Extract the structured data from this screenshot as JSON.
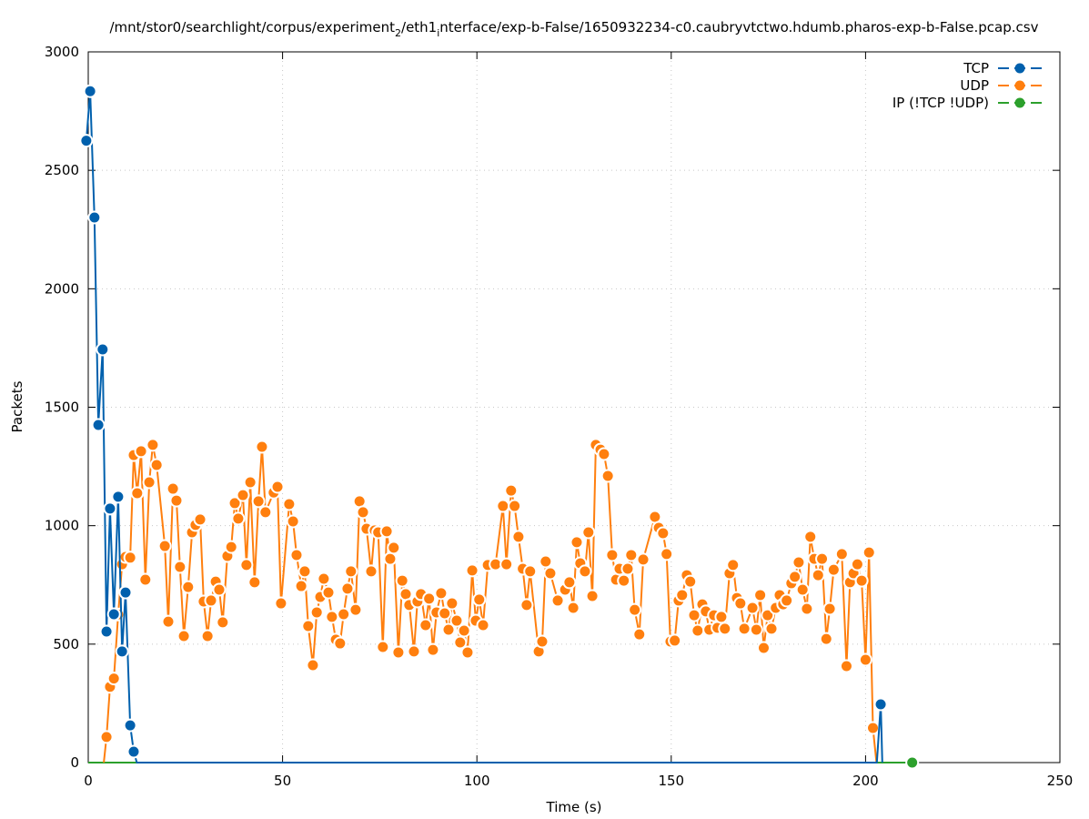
{
  "chart_data": {
    "type": "line",
    "title": {
      "pre": "/mnt/stor0/searchlight/corpus/experiment",
      "sub1": "2",
      "mid": "/eth1",
      "sub2": "i",
      "post": "nterface/exp-b-False/1650932234-c0.caubryvtctwo.hdumb.pharos-exp-b-False.pcap.csv"
    },
    "xlabel": "Time (s)",
    "ylabel": "Packets",
    "xlim": [
      0,
      250
    ],
    "ylim": [
      0,
      3000
    ],
    "xticks": [
      0,
      50,
      100,
      150,
      200,
      250
    ],
    "yticks": [
      0,
      500,
      1000,
      1500,
      2000,
      2500,
      3000
    ],
    "grid": true,
    "legend_position": "top-right",
    "series": [
      {
        "name": "TCP",
        "color": "#0060ad",
        "points": [
          [
            -0.5,
            2625
          ],
          [
            0.5,
            2834
          ],
          [
            1.6,
            2301
          ],
          [
            2.6,
            1425
          ],
          [
            3.7,
            1744
          ],
          [
            4.7,
            553
          ],
          [
            5.6,
            1072
          ],
          [
            6.6,
            626
          ],
          [
            7.7,
            1122
          ],
          [
            8.7,
            469
          ],
          [
            9.6,
            718
          ],
          [
            10.8,
            157
          ],
          [
            11.7,
            46
          ],
          [
            12.5,
            0
          ],
          [
            202.9,
            0
          ],
          [
            203.9,
            246
          ],
          [
            204.3,
            0
          ]
        ],
        "marker_count": 13,
        "extra_markers": [
          [
            203.9,
            246
          ]
        ]
      },
      {
        "name": "UDP",
        "color": "#ff7f0e",
        "points": [
          [
            4.0,
            0
          ],
          [
            4.7,
            108
          ],
          [
            5.6,
            320
          ],
          [
            6.6,
            355
          ],
          [
            7.7,
            625
          ],
          [
            8.7,
            837
          ],
          [
            9.6,
            868
          ],
          [
            10.8,
            865
          ],
          [
            11.7,
            1298
          ],
          [
            12.6,
            1137
          ],
          [
            13.6,
            1314
          ],
          [
            14.7,
            772
          ],
          [
            15.7,
            1183
          ],
          [
            16.6,
            1341
          ],
          [
            17.6,
            1256
          ],
          [
            19.7,
            914
          ],
          [
            20.6,
            595
          ],
          [
            21.8,
            1156
          ],
          [
            22.7,
            1106
          ],
          [
            23.6,
            826
          ],
          [
            24.6,
            534
          ],
          [
            25.7,
            741
          ],
          [
            26.7,
            972
          ],
          [
            27.6,
            1003
          ],
          [
            28.8,
            1026
          ],
          [
            29.7,
            680
          ],
          [
            30.7,
            534
          ],
          [
            31.6,
            684
          ],
          [
            32.8,
            764
          ],
          [
            33.7,
            730
          ],
          [
            34.6,
            592
          ],
          [
            35.8,
            872
          ],
          [
            36.8,
            910
          ],
          [
            37.7,
            1095
          ],
          [
            38.6,
            1030
          ],
          [
            39.8,
            1129
          ],
          [
            40.7,
            834
          ],
          [
            41.7,
            1183
          ],
          [
            42.8,
            761
          ],
          [
            43.8,
            1103
          ],
          [
            44.7,
            1333
          ],
          [
            45.6,
            1057
          ],
          [
            47.7,
            1140
          ],
          [
            48.7,
            1164
          ],
          [
            49.6,
            672
          ],
          [
            51.7,
            1091
          ],
          [
            52.7,
            1018
          ],
          [
            53.6,
            876
          ],
          [
            54.8,
            745
          ],
          [
            55.7,
            807
          ],
          [
            56.6,
            576
          ],
          [
            57.8,
            411
          ],
          [
            58.8,
            634
          ],
          [
            59.7,
            699
          ],
          [
            60.6,
            776
          ],
          [
            61.8,
            718
          ],
          [
            62.7,
            615
          ],
          [
            63.7,
            519
          ],
          [
            64.8,
            503
          ],
          [
            65.7,
            626
          ],
          [
            66.7,
            734
          ],
          [
            67.6,
            807
          ],
          [
            68.8,
            645
          ],
          [
            69.8,
            1103
          ],
          [
            70.7,
            1057
          ],
          [
            71.6,
            987
          ],
          [
            72.8,
            807
          ],
          [
            73.7,
            980
          ],
          [
            74.6,
            972
          ],
          [
            75.8,
            488
          ],
          [
            76.8,
            976
          ],
          [
            77.7,
            860
          ],
          [
            78.6,
            907
          ],
          [
            79.8,
            465
          ],
          [
            80.8,
            768
          ],
          [
            81.7,
            711
          ],
          [
            82.6,
            665
          ],
          [
            83.8,
            469
          ],
          [
            84.7,
            680
          ],
          [
            85.6,
            711
          ],
          [
            86.8,
            580
          ],
          [
            87.7,
            692
          ],
          [
            88.7,
            476
          ],
          [
            89.6,
            634
          ],
          [
            90.8,
            715
          ],
          [
            91.7,
            630
          ],
          [
            92.7,
            561
          ],
          [
            93.6,
            672
          ],
          [
            94.8,
            599
          ],
          [
            95.7,
            507
          ],
          [
            96.7,
            557
          ],
          [
            97.6,
            465
          ],
          [
            98.8,
            811
          ],
          [
            99.7,
            599
          ],
          [
            100.6,
            688
          ],
          [
            101.6,
            580
          ],
          [
            102.8,
            834
          ],
          [
            104.8,
            837
          ],
          [
            106.7,
            1083
          ],
          [
            107.6,
            837
          ],
          [
            108.8,
            1148
          ],
          [
            109.7,
            1083
          ],
          [
            110.7,
            953
          ],
          [
            111.8,
            818
          ],
          [
            112.8,
            665
          ],
          [
            113.7,
            807
          ],
          [
            115.9,
            469
          ],
          [
            116.8,
            511
          ],
          [
            117.7,
            849
          ],
          [
            118.9,
            799
          ],
          [
            120.8,
            684
          ],
          [
            122.7,
            730
          ],
          [
            123.8,
            761
          ],
          [
            124.8,
            653
          ],
          [
            125.7,
            930
          ],
          [
            126.6,
            841
          ],
          [
            127.8,
            807
          ],
          [
            128.7,
            972
          ],
          [
            129.7,
            703
          ],
          [
            130.6,
            1341
          ],
          [
            131.8,
            1321
          ],
          [
            132.7,
            1302
          ],
          [
            133.7,
            1210
          ],
          [
            134.8,
            876
          ],
          [
            135.8,
            772
          ],
          [
            136.7,
            818
          ],
          [
            137.8,
            768
          ],
          [
            138.8,
            818
          ],
          [
            139.7,
            876
          ],
          [
            140.6,
            645
          ],
          [
            141.8,
            541
          ],
          [
            142.8,
            857
          ],
          [
            145.8,
            1037
          ],
          [
            146.8,
            991
          ],
          [
            147.9,
            968
          ],
          [
            148.8,
            880
          ],
          [
            149.8,
            511
          ],
          [
            150.9,
            515
          ],
          [
            151.9,
            684
          ],
          [
            152.8,
            707
          ],
          [
            154.0,
            791
          ],
          [
            154.9,
            764
          ],
          [
            155.9,
            622
          ],
          [
            156.8,
            557
          ],
          [
            158.0,
            668
          ],
          [
            158.9,
            638
          ],
          [
            159.8,
            561
          ],
          [
            161.0,
            622
          ],
          [
            161.9,
            569
          ],
          [
            162.9,
            615
          ],
          [
            163.8,
            565
          ],
          [
            165.0,
            799
          ],
          [
            165.9,
            834
          ],
          [
            166.9,
            695
          ],
          [
            167.8,
            672
          ],
          [
            168.8,
            565
          ],
          [
            170.9,
            653
          ],
          [
            171.9,
            561
          ],
          [
            172.9,
            707
          ],
          [
            173.8,
            484
          ],
          [
            174.8,
            622
          ],
          [
            175.8,
            565
          ],
          [
            176.9,
            653
          ],
          [
            177.9,
            707
          ],
          [
            178.8,
            668
          ],
          [
            179.7,
            684
          ],
          [
            180.9,
            757
          ],
          [
            181.8,
            784
          ],
          [
            182.8,
            845
          ],
          [
            183.8,
            730
          ],
          [
            184.9,
            649
          ],
          [
            185.8,
            953
          ],
          [
            186.8,
            860
          ],
          [
            187.8,
            791
          ],
          [
            188.8,
            860
          ],
          [
            189.9,
            522
          ],
          [
            190.8,
            649
          ],
          [
            191.8,
            814
          ],
          [
            193.9,
            880
          ],
          [
            195.1,
            407
          ],
          [
            196.0,
            761
          ],
          [
            196.9,
            799
          ],
          [
            197.9,
            837
          ],
          [
            199.0,
            768
          ],
          [
            200.0,
            434
          ],
          [
            200.9,
            887
          ],
          [
            201.9,
            146
          ],
          [
            202.8,
            0
          ]
        ]
      },
      {
        "name": "IP (!TCP  !UDP)",
        "color": "#2ca02c",
        "points": [
          [
            0,
            0
          ],
          [
            212.0,
            0
          ]
        ],
        "extra_markers": [
          [
            212.0,
            0
          ]
        ]
      }
    ]
  }
}
